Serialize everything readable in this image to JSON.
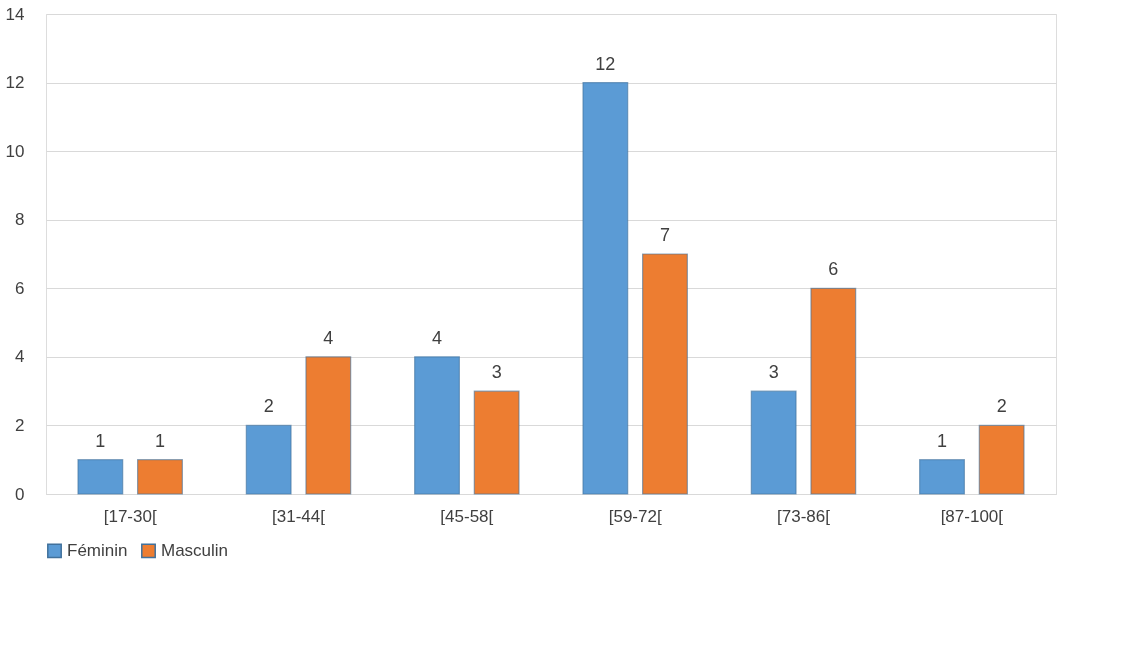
{
  "chart_data": {
    "type": "bar",
    "categories": [
      "[17-30[",
      "[31-44[",
      "[45-58[",
      "[59-72[",
      "[73-86[",
      "[87-100["
    ],
    "series": [
      {
        "name": "Féminin",
        "color": "#5b9bd5",
        "values": [
          1,
          2,
          4,
          12,
          3,
          1
        ]
      },
      {
        "name": "Masculin",
        "color": "#ed7d31",
        "values": [
          1,
          4,
          3,
          7,
          6,
          2
        ]
      }
    ],
    "ylim": [
      0,
      14
    ],
    "yticks": [
      0,
      2,
      4,
      6,
      8,
      10,
      12,
      14
    ],
    "grid": "y",
    "legend": "bottom",
    "data_labels": true
  }
}
